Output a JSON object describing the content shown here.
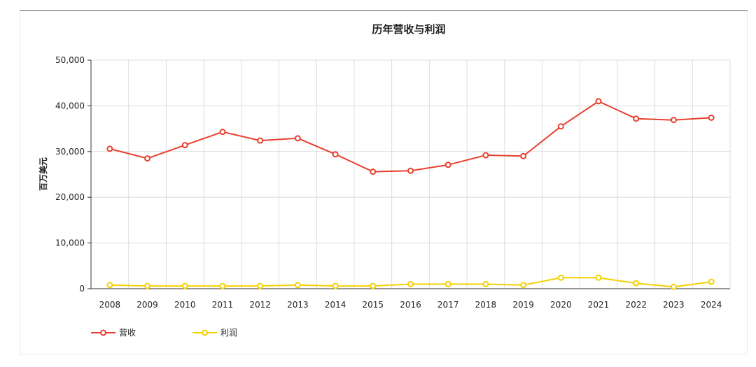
{
  "chart_data": {
    "type": "line",
    "title": "历年营收与利润",
    "xlabel": "",
    "ylabel": "百万美元",
    "x": [
      "2008",
      "2009",
      "2010",
      "2011",
      "2012",
      "2013",
      "2014",
      "2015",
      "2016",
      "2017",
      "2018",
      "2019",
      "2020",
      "2021",
      "2022",
      "2023",
      "2024"
    ],
    "ylim": [
      0,
      50000
    ],
    "yticks": [
      "0",
      "10,000",
      "20,000",
      "30,000",
      "40,000",
      "50,000"
    ],
    "grid": true,
    "legend_position": "bottom-left",
    "series": [
      {
        "name": "营收",
        "color": "#e8402f",
        "values": [
          30600,
          28500,
          31400,
          34300,
          32400,
          32900,
          29400,
          25600,
          25800,
          27100,
          29200,
          29000,
          35500,
          41000,
          37200,
          36900,
          37400
        ]
      },
      {
        "name": "利润",
        "color": "#f5d000",
        "values": [
          800,
          600,
          600,
          600,
          600,
          800,
          600,
          600,
          1000,
          1000,
          1000,
          800,
          2400,
          2400,
          1200,
          400,
          1500
        ]
      }
    ]
  }
}
